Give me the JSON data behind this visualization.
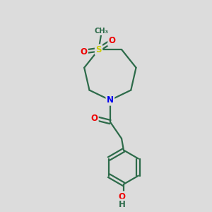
{
  "bg_color": "#dcdcdc",
  "bond_color": "#2d6b4a",
  "atom_colors": {
    "N": "#0000ee",
    "O": "#ee0000",
    "S": "#cccc00",
    "C": "#2d6b4a"
  },
  "bond_width": 1.6,
  "font_size_atom": 8.5
}
